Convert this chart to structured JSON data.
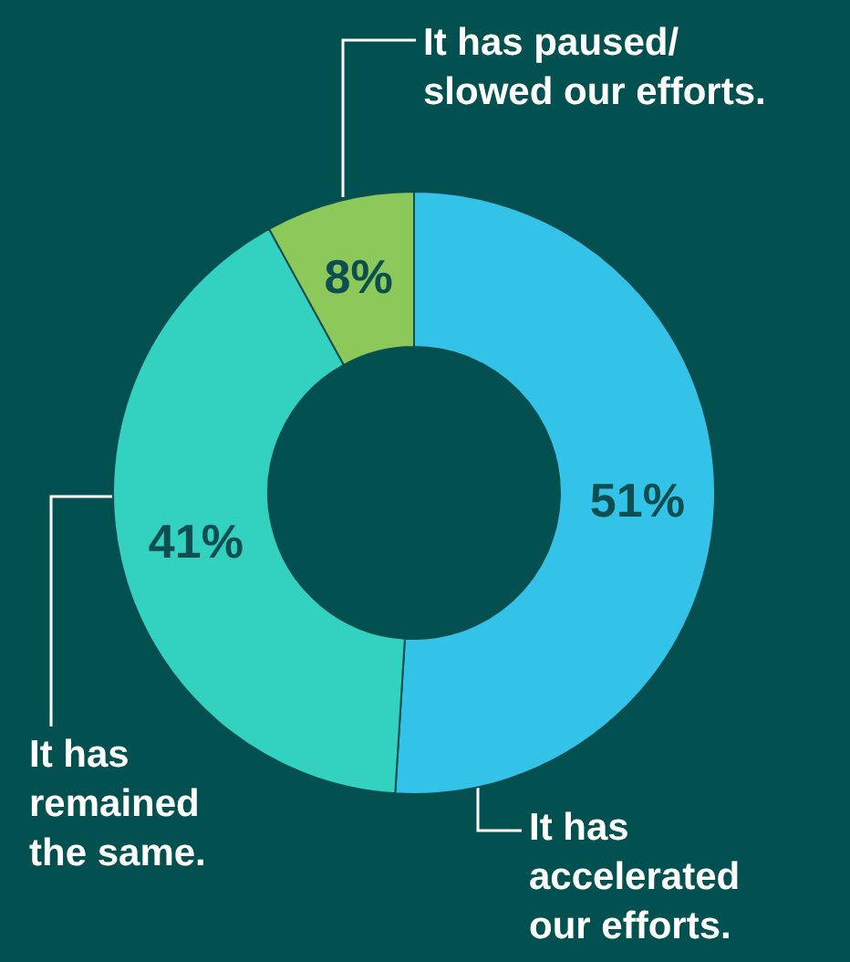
{
  "chart_data": {
    "type": "donut",
    "categories": [
      "It has accelerated our efforts.",
      "It has remained the same.",
      "It has paused/ slowed our efforts."
    ],
    "values": [
      51,
      41,
      8
    ],
    "value_labels": [
      "51%",
      "41%",
      "8%"
    ],
    "colors": [
      "#33c3e8",
      "#33d1c0",
      "#8cc85a"
    ]
  }
}
